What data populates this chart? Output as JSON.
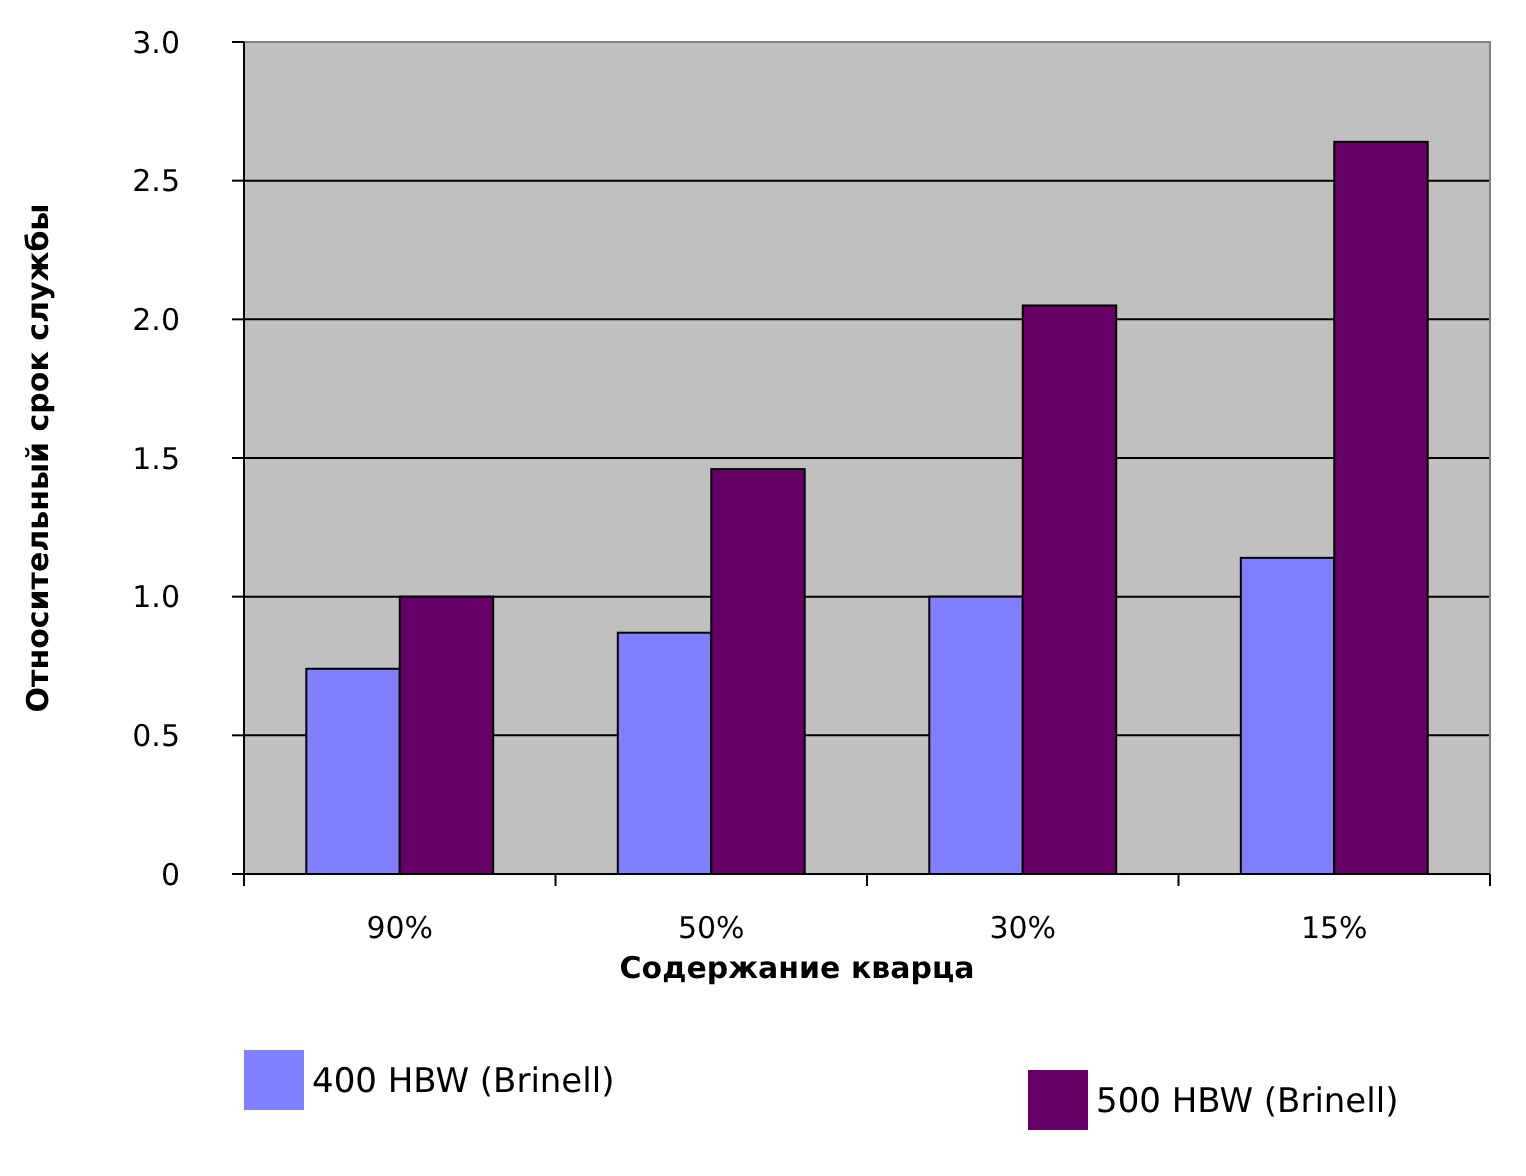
{
  "chart_data": {
    "type": "bar",
    "xlabel": "Содержание кварца",
    "ylabel": "Относительный срок службы",
    "categories": [
      "90%",
      "50%",
      "30%",
      "15%"
    ],
    "series": [
      {
        "name": "400 HBW (Brinell)",
        "color": "#8080ff",
        "values": [
          0.74,
          0.87,
          1.0,
          1.14
        ]
      },
      {
        "name": "500 HBW (Brinell)",
        "color": "#660066",
        "values": [
          1.0,
          1.46,
          2.05,
          2.64
        ]
      }
    ],
    "ylim": [
      0,
      3
    ],
    "yticks": [
      {
        "value": 0,
        "label": "0"
      },
      {
        "value": 0.5,
        "label": "0.5"
      },
      {
        "value": 1,
        "label": "1.0"
      },
      {
        "value": 1.5,
        "label": "1.5"
      },
      {
        "value": 2,
        "label": "2.0"
      },
      {
        "value": 2.5,
        "label": "2.5"
      },
      {
        "value": 3,
        "label": "3.0"
      }
    ],
    "grid": "y",
    "legend": "bottom"
  }
}
